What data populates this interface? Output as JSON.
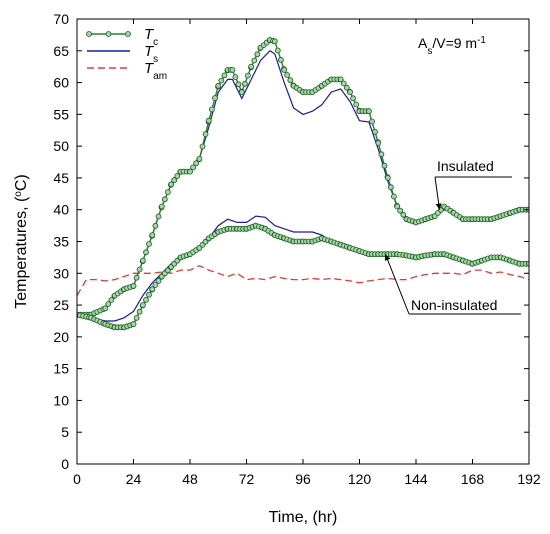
{
  "chart_data": {
    "type": "line",
    "xlabel": "Time, (hr)",
    "ylabel_parts": {
      "main": "Temperatures, (",
      "deg": "o",
      "unit": "C)"
    },
    "xlim": [
      0,
      192
    ],
    "ylim": [
      0,
      70
    ],
    "xticks": [
      0,
      24,
      48,
      72,
      96,
      120,
      144,
      168,
      192
    ],
    "yticks": [
      0,
      5,
      10,
      15,
      20,
      25,
      30,
      35,
      40,
      45,
      50,
      55,
      60,
      65,
      70
    ],
    "grid": false,
    "legend_position": "top-left",
    "legend": [
      {
        "symbol": "T",
        "subscript": "c",
        "style": "green-line-with-circle-markers"
      },
      {
        "symbol": "T",
        "subscript": "s",
        "style": "blue-line"
      },
      {
        "symbol": "T",
        "subscript": "am",
        "style": "red-dashed-line"
      }
    ],
    "annotation_box": {
      "parts": [
        "A",
        "s",
        "/V=9 m",
        "-1"
      ]
    },
    "annotations": [
      {
        "text": "Insulated",
        "points_to": {
          "x": 154,
          "y": 40
        }
      },
      {
        "text": "Non-insulated",
        "points_to": {
          "x": 131,
          "y": 33
        }
      }
    ],
    "colors": {
      "tc_line": "#2e7d32",
      "tc_marker_fill": "#a5d6a7",
      "tc_marker_stroke": "#1b5e20",
      "ts_line": "#1a1aa6",
      "tam_line": "#e53935"
    },
    "series": [
      {
        "name": "Tc insulated",
        "kind": "Tc",
        "x": [
          0,
          6,
          12,
          16,
          20,
          24,
          28,
          32,
          36,
          40,
          44,
          48,
          52,
          56,
          60,
          64,
          66,
          70,
          74,
          78,
          82,
          84,
          88,
          92,
          96,
          100,
          104,
          108,
          112,
          116,
          120,
          124,
          128,
          132,
          136,
          140,
          144,
          148,
          152,
          156,
          160,
          164,
          168,
          176,
          184,
          188,
          192
        ],
        "values": [
          23.5,
          23.5,
          24.5,
          26.5,
          27.5,
          28,
          32,
          36,
          40.5,
          44,
          46,
          46,
          48,
          54,
          59.5,
          62,
          62,
          58.5,
          62.5,
          65.5,
          66.7,
          66.5,
          62,
          59.5,
          58.5,
          58.5,
          59.5,
          60.5,
          60.5,
          58.5,
          55.5,
          55.5,
          50.5,
          45,
          40.5,
          38.5,
          38,
          38.5,
          39,
          40.5,
          39.5,
          38.5,
          38.5,
          38.5,
          39.5,
          40,
          40
        ]
      },
      {
        "name": "Ts insulated",
        "kind": "Ts",
        "x": [
          0,
          6,
          12,
          16,
          20,
          24,
          28,
          32,
          36,
          40,
          44,
          48,
          52,
          56,
          60,
          64,
          66,
          70,
          74,
          78,
          82,
          84,
          88,
          92,
          96,
          100,
          104,
          108,
          112,
          116,
          120,
          124,
          128,
          132,
          136,
          140,
          144,
          148,
          152,
          156,
          160,
          164,
          168,
          176,
          184,
          188,
          192
        ],
        "values": [
          23.5,
          23.5,
          24.5,
          26.5,
          27.5,
          28,
          32,
          36,
          40.5,
          44,
          46,
          46,
          48,
          53,
          58.5,
          60.5,
          60.5,
          57.5,
          60.5,
          63.5,
          65,
          64.5,
          60,
          56,
          55,
          55.5,
          56.5,
          58.5,
          59,
          57,
          54,
          53.8,
          49.5,
          44.5,
          40.5,
          38.5,
          38,
          38.5,
          39,
          40,
          39.5,
          38.5,
          38.5,
          38.5,
          39.5,
          40,
          40
        ]
      },
      {
        "name": "Tc non-insulated",
        "kind": "Tc",
        "x": [
          0,
          6,
          12,
          16,
          20,
          24,
          28,
          32,
          36,
          40,
          44,
          48,
          52,
          56,
          60,
          64,
          68,
          72,
          76,
          80,
          84,
          88,
          92,
          96,
          100,
          104,
          108,
          112,
          116,
          120,
          124,
          128,
          132,
          136,
          140,
          144,
          148,
          152,
          156,
          160,
          164,
          168,
          172,
          176,
          180,
          184,
          188,
          192
        ],
        "values": [
          23.5,
          23,
          22,
          21.5,
          21.5,
          22,
          25,
          27.5,
          29.5,
          31,
          32.5,
          33,
          34,
          35.5,
          36.5,
          37,
          37,
          37,
          37.5,
          37,
          36,
          35.5,
          35,
          35,
          35,
          35.5,
          35,
          34.5,
          34,
          33.5,
          33,
          33,
          33,
          33,
          32.8,
          32.5,
          32.8,
          33,
          33,
          32.5,
          32,
          31.5,
          32,
          32.5,
          32.5,
          32,
          31.5,
          31.5
        ]
      },
      {
        "name": "Ts non-insulated",
        "kind": "Ts",
        "x": [
          0,
          6,
          12,
          16,
          20,
          24,
          28,
          32,
          36,
          40,
          44,
          48,
          52,
          56,
          60,
          64,
          68,
          72,
          76,
          80,
          84,
          88,
          92,
          96,
          100,
          104,
          108,
          112,
          116,
          120,
          124
        ],
        "values": [
          23.5,
          23,
          22.5,
          22.5,
          23,
          24,
          26.5,
          28.5,
          30,
          31.5,
          32.5,
          33,
          34,
          35.5,
          37.5,
          38.5,
          38,
          38,
          39,
          38.8,
          37.5,
          37,
          36.5,
          36.5,
          36.5,
          36,
          35,
          34.5,
          34,
          33.5,
          33
        ]
      },
      {
        "name": "Tam",
        "kind": "Tam",
        "x": [
          0,
          4,
          8,
          12,
          16,
          20,
          24,
          28,
          32,
          36,
          40,
          44,
          48,
          52,
          56,
          60,
          64,
          68,
          72,
          76,
          80,
          84,
          88,
          92,
          96,
          100,
          104,
          108,
          112,
          116,
          120,
          124,
          128,
          132,
          136,
          140,
          144,
          148,
          152,
          156,
          160,
          164,
          168,
          172,
          176,
          180,
          184,
          188,
          192
        ],
        "values": [
          26.5,
          29,
          29,
          28.8,
          29,
          29.5,
          30,
          30,
          30,
          30.2,
          30,
          30.5,
          30.5,
          31.2,
          30.5,
          30,
          29.5,
          30,
          29,
          29.2,
          29,
          29.5,
          29.2,
          29,
          29,
          29.2,
          29,
          29.2,
          29,
          28.8,
          28.5,
          28.8,
          29,
          29.2,
          29,
          29,
          29.5,
          29.8,
          30,
          30,
          30,
          29.8,
          30.5,
          30.5,
          30,
          30.2,
          29.8,
          29.5,
          29
        ]
      }
    ]
  }
}
